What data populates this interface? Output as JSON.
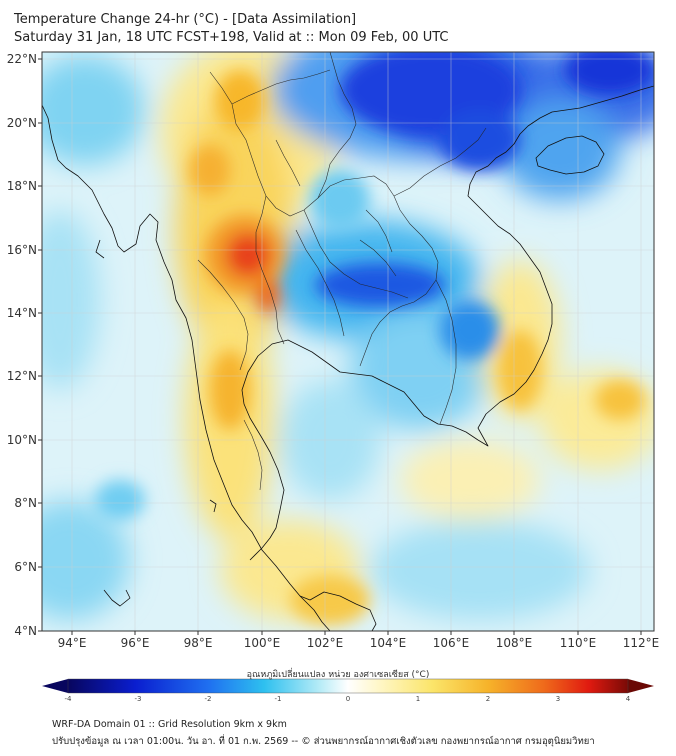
{
  "header": {
    "title_line1": "Temperature Change 24-hr (°C) - [Data Assimilation]",
    "title_line2": "Saturday 31 Jan, 18 UTC FCST+198, Valid at :: Mon 09 Feb, 00 UTC"
  },
  "map": {
    "lat_labels": [
      "22°N",
      "20°N",
      "18°N",
      "16°N",
      "14°N",
      "12°N",
      "10°N",
      "8°N",
      "6°N",
      "4°N"
    ],
    "lon_labels": [
      "94°E",
      "96°E",
      "98°E",
      "100°E",
      "102°E",
      "104°E",
      "106°E",
      "108°E",
      "110°E",
      "112°E"
    ]
  },
  "colorbar": {
    "title": "อุณหภูมิเปลี่ยนแปลง หน่วย องศาเซลเซียส (°C)",
    "ticks": [
      "-4",
      "-3",
      "-2",
      "-1",
      "0",
      "1",
      "2",
      "3",
      "4"
    ],
    "min": -4,
    "max": 4
  },
  "footer": {
    "line1": "WRF-DA Domain 01 :: Grid Resolution 9km x 9km",
    "line2": "ปรับปรุงข้อมูล ณ เวลา 01:00น. วัน อา. ที่ 01 ก.พ. 2569 -- © ส่วนพยากรณ์อากาศเชิงตัวเลข กองพยากรณ์อากาศ กรมอุตุนิยมวิทยา"
  },
  "colors": {
    "warm_strong": "#e8431a",
    "warm": "#f7b72c",
    "warm_light": "#fbe98a",
    "neutral": "#eaf7fb",
    "cool_light": "#9fe0f4",
    "cool": "#2fb2ec",
    "cool_strong": "#1150e0",
    "cool_deep": "#0b1cc8"
  }
}
